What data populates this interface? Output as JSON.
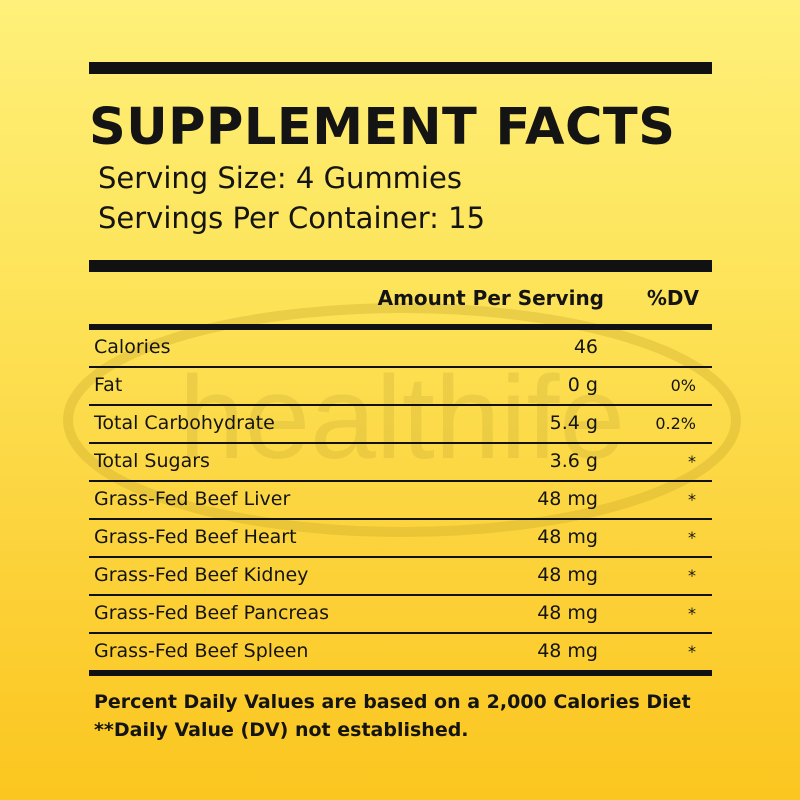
{
  "watermark": {
    "text": "healthife"
  },
  "header": {
    "title": "SUPPLEMENT FACTS",
    "serving_size": "Serving Size: 4 Gummies",
    "servings_per_container": "Servings Per Container: 15"
  },
  "table": {
    "columns": {
      "amount": "Amount Per Serving",
      "dv": "%DV"
    },
    "rows": [
      {
        "name": "Calories",
        "amount": "46",
        "dv": ""
      },
      {
        "name": "Fat",
        "amount": "0 g",
        "dv": "0%"
      },
      {
        "name": "Total Carbohydrate",
        "amount": "5.4 g",
        "dv": "0.2%"
      },
      {
        "name": "Total Sugars",
        "amount": "3.6 g",
        "dv": "*"
      },
      {
        "name": "Grass-Fed Beef Liver",
        "amount": "48 mg",
        "dv": "*"
      },
      {
        "name": "Grass-Fed Beef Heart",
        "amount": "48 mg",
        "dv": "*"
      },
      {
        "name": "Grass-Fed Beef Kidney",
        "amount": "48 mg",
        "dv": "*"
      },
      {
        "name": "Grass-Fed Beef Pancreas",
        "amount": "48 mg",
        "dv": "*"
      },
      {
        "name": "Grass-Fed Beef Spleen",
        "amount": "48 mg",
        "dv": "*"
      }
    ]
  },
  "footnotes": {
    "line1": "Percent Daily Values are based on a 2,000 Calories Diet",
    "line2": "**Daily Value (DV) not established."
  },
  "colors": {
    "text": "#141414",
    "background_top": "#fef07a",
    "background_bottom": "#fbc61f",
    "watermark": "#c9a82a"
  }
}
